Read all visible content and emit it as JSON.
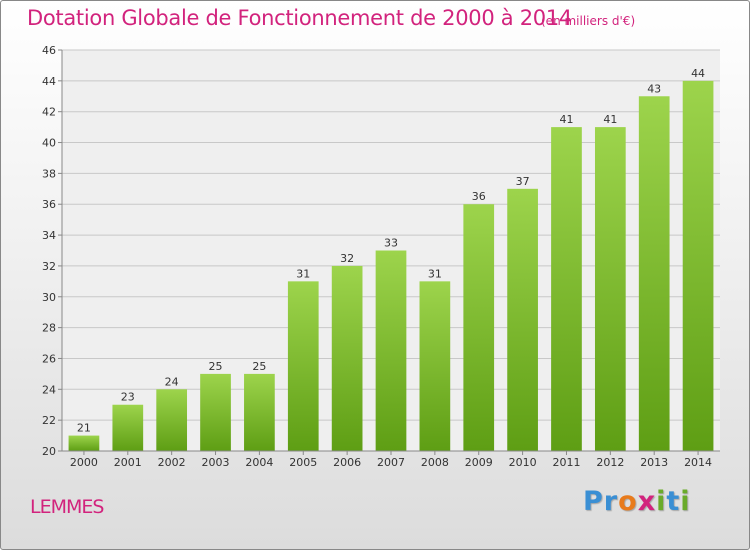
{
  "header": {
    "title": "Dotation Globale de Fonctionnement de 2000 à 2014",
    "unit_note": "(en milliers d'€)"
  },
  "footer": {
    "commune": "LEMMES",
    "logo_letters": [
      {
        "char": "P",
        "color": "#3a8fd4"
      },
      {
        "char": "r",
        "color": "#3a8fd4"
      },
      {
        "char": "o",
        "color": "#e87b1c"
      },
      {
        "char": "x",
        "color": "#d2237d"
      },
      {
        "char": "i",
        "color": "#6aab2a"
      },
      {
        "char": "t",
        "color": "#3a8fd4"
      },
      {
        "char": "i",
        "color": "#6aab2a"
      }
    ]
  },
  "colors": {
    "accent": "#d2237d",
    "bar_top": "#9dd44c",
    "bar_bottom": "#5e9e14",
    "grid": "#c8c8c8"
  },
  "chart_data": {
    "type": "bar",
    "title": "Dotation Globale de Fonctionnement de 2000 à 2014",
    "subtitle": "(en milliers d'€)",
    "categories": [
      "2000",
      "2001",
      "2002",
      "2003",
      "2004",
      "2005",
      "2006",
      "2007",
      "2008",
      "2009",
      "2010",
      "2011",
      "2012",
      "2013",
      "2014"
    ],
    "values": [
      21,
      23,
      24,
      25,
      25,
      31,
      32,
      33,
      31,
      36,
      37,
      41,
      41,
      43,
      44
    ],
    "ylim": [
      20,
      46
    ],
    "yticks": [
      20,
      22,
      24,
      26,
      28,
      30,
      32,
      34,
      36,
      38,
      40,
      42,
      44,
      46
    ],
    "grid": true,
    "data_labels": true
  }
}
